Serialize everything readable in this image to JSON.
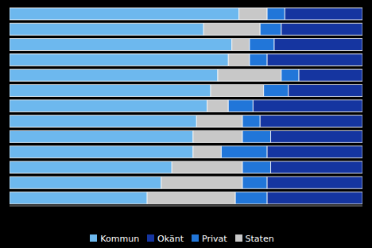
{
  "chart_data": {
    "type": "bar",
    "orientation": "horizontal",
    "stacked": true,
    "categories": [
      null,
      null,
      null,
      null,
      null,
      null,
      null,
      null,
      null,
      null,
      null,
      null,
      null
    ],
    "series": [
      {
        "name": "Kommun",
        "color": "#6db8ee",
        "values": [
          65,
          55,
          63,
          62,
          59,
          57,
          56,
          53,
          52,
          52,
          46,
          43,
          39
        ]
      },
      {
        "name": "Staten",
        "color": "#c8c8c8",
        "values": [
          8,
          16,
          5,
          6,
          18,
          15,
          6,
          13,
          14,
          8,
          20,
          23,
          25
        ]
      },
      {
        "name": "Privat",
        "color": "#2176d9",
        "values": [
          5,
          6,
          7,
          5,
          5,
          7,
          7,
          5,
          8,
          13,
          8,
          7,
          9
        ]
      },
      {
        "name": "Okänt",
        "color": "#1535a0",
        "values": [
          22,
          23,
          25,
          27,
          18,
          21,
          31,
          29,
          26,
          27,
          26,
          27,
          27
        ]
      }
    ],
    "xlim": [
      0,
      100
    ],
    "xticks": [],
    "tick_labels": false,
    "grid": false,
    "legend": "bottom"
  }
}
